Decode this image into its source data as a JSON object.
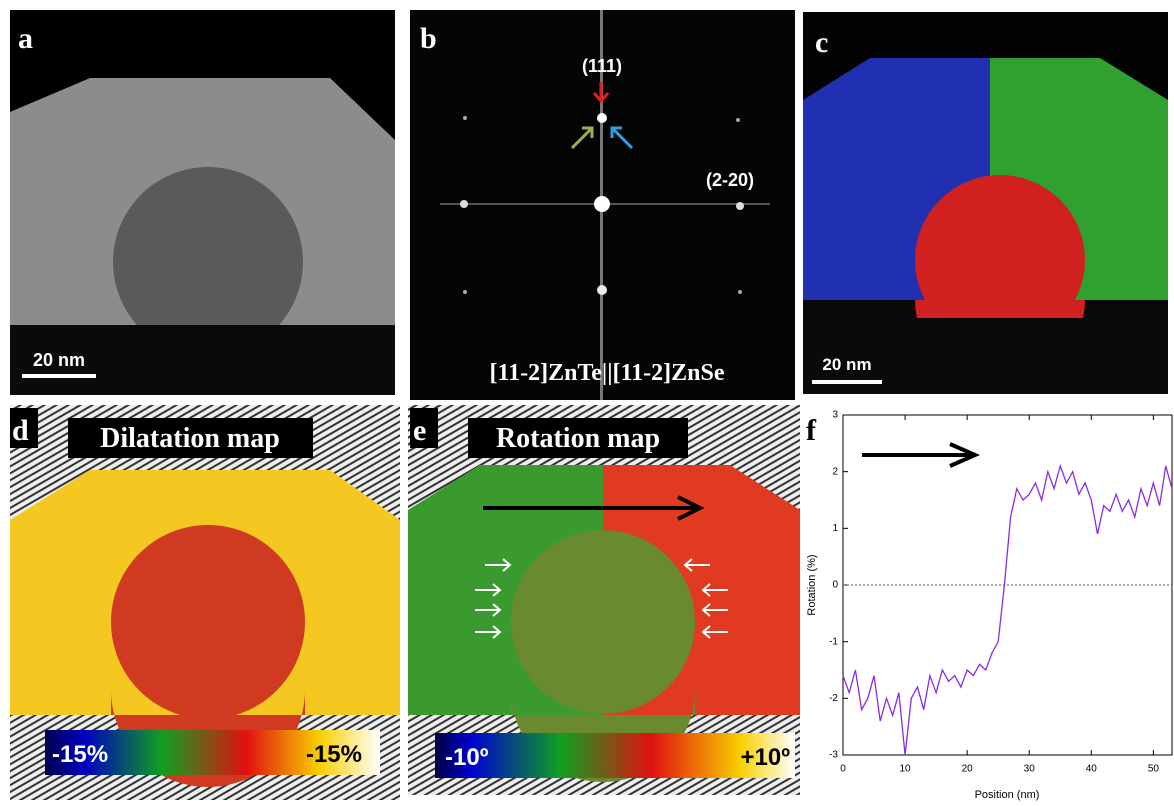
{
  "panels": {
    "a": {
      "label": "a",
      "scale": "20 nm"
    },
    "b": {
      "label": "b",
      "spot1": "(111)",
      "spot2": "(2-20)",
      "caption": "[11-2]ZnTe||[11-2]ZnSe"
    },
    "c": {
      "label": "c",
      "scale": "20 nm"
    },
    "d": {
      "label": "d",
      "title": "Dilatation map",
      "cmin": "-15%",
      "cmax": "-15%"
    },
    "e": {
      "label": "e",
      "title": "Rotation map",
      "cmin": "-10º",
      "cmax": "+10º"
    },
    "f": {
      "label": "f"
    }
  },
  "chart_data": {
    "type": "line",
    "xlabel": "Position (nm)",
    "ylabel": "Rotation (%)",
    "x": [
      0,
      1,
      2,
      3,
      4,
      5,
      6,
      7,
      8,
      9,
      10,
      11,
      12,
      13,
      14,
      15,
      16,
      17,
      18,
      19,
      20,
      21,
      22,
      23,
      24,
      25,
      26,
      27,
      28,
      29,
      30,
      31,
      32,
      33,
      34,
      35,
      36,
      37,
      38,
      39,
      40,
      41,
      42,
      43,
      44,
      45,
      46,
      47,
      48,
      49,
      50,
      51,
      52,
      53
    ],
    "series": [
      {
        "name": "Rotation",
        "color": "#8a2be2",
        "values": [
          -1.6,
          -1.9,
          -1.5,
          -2.2,
          -2.0,
          -1.6,
          -2.4,
          -2.0,
          -2.3,
          -1.9,
          -3.0,
          -2.0,
          -1.8,
          -2.2,
          -1.6,
          -1.9,
          -1.5,
          -1.7,
          -1.6,
          -1.8,
          -1.5,
          -1.6,
          -1.4,
          -1.5,
          -1.2,
          -1.0,
          0.0,
          1.2,
          1.7,
          1.5,
          1.6,
          1.8,
          1.5,
          2.0,
          1.7,
          2.1,
          1.8,
          2.0,
          1.6,
          1.8,
          1.5,
          0.9,
          1.4,
          1.3,
          1.6,
          1.3,
          1.5,
          1.2,
          1.7,
          1.4,
          1.8,
          1.4,
          2.1,
          1.7
        ]
      }
    ],
    "xlim": [
      0,
      53
    ],
    "ylim": [
      -3,
      3
    ],
    "xticks": [
      0,
      10,
      20,
      30,
      40,
      50
    ],
    "yticks": [
      -3,
      -2,
      -1,
      0,
      1,
      2,
      3
    ],
    "zero_line": true
  }
}
